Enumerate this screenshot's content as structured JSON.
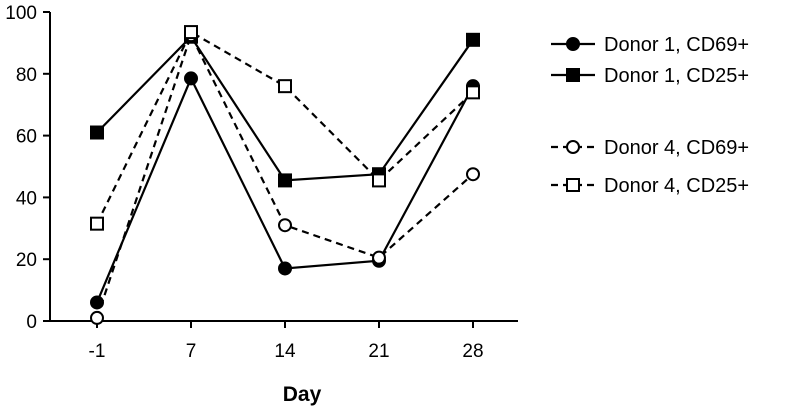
{
  "chart_data": {
    "type": "line",
    "title": "",
    "xlabel": "Day",
    "ylabel": "",
    "x": [
      -1,
      7,
      14,
      21,
      28
    ],
    "x_tick_labels": [
      "-1",
      "7",
      "14",
      "21",
      "28"
    ],
    "ylim": [
      0,
      100
    ],
    "y_ticks": [
      0,
      20,
      40,
      60,
      80,
      100
    ],
    "y_tick_labels": [
      "0",
      "20",
      "40",
      "60",
      "80",
      "100"
    ],
    "grid": false,
    "legend_position": "right",
    "series": [
      {
        "name": "Donor 1, CD69+",
        "values": [
          6,
          78.5,
          17,
          19.5,
          76
        ],
        "marker": "circle",
        "filled": true,
        "dashed": false,
        "color": "#000000"
      },
      {
        "name": "Donor 1, CD25+",
        "values": [
          61,
          92,
          45.5,
          47.5,
          91
        ],
        "marker": "square",
        "filled": true,
        "dashed": false,
        "color": "#000000"
      },
      {
        "name": "Donor 4, CD69+",
        "values": [
          1,
          92.5,
          31,
          20.5,
          47.5
        ],
        "marker": "circle",
        "filled": false,
        "dashed": true,
        "color": "#000000"
      },
      {
        "name": "Donor 4, CD25+",
        "values": [
          31.5,
          93.5,
          76,
          45.5,
          74
        ],
        "marker": "square",
        "filled": false,
        "dashed": true,
        "color": "#000000"
      }
    ]
  }
}
